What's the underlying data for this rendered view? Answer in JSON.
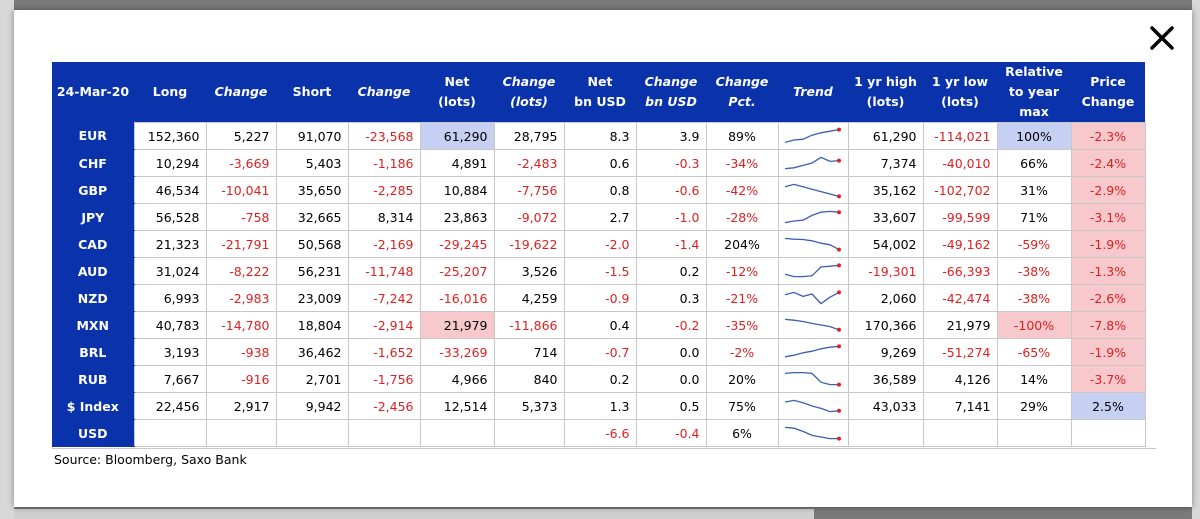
{
  "modal": {
    "close_icon": "close-icon",
    "source": "Source: Bloomberg, Saxo Bank"
  },
  "colors": {
    "header_bg": "#0a32aa",
    "negative": "#e02020",
    "highlight_blue": "#c5d0f2",
    "highlight_pink": "#f7c9cc",
    "spark_line": "#3a5fb5",
    "spark_dot": "#e02020"
  },
  "table": {
    "headers": [
      {
        "lines": [
          "24-Mar-20"
        ],
        "italic": false
      },
      {
        "lines": [
          "Long"
        ],
        "italic": false
      },
      {
        "lines": [
          "Change"
        ],
        "italic": true
      },
      {
        "lines": [
          "Short"
        ],
        "italic": false
      },
      {
        "lines": [
          "Change"
        ],
        "italic": true
      },
      {
        "lines": [
          "Net",
          "(lots)"
        ],
        "italic": false
      },
      {
        "lines": [
          "Change",
          "(lots)"
        ],
        "italic": true
      },
      {
        "lines": [
          "Net",
          "bn USD"
        ],
        "italic": false
      },
      {
        "lines": [
          "Change",
          "bn USD"
        ],
        "italic": true
      },
      {
        "lines": [
          "Change",
          "Pct."
        ],
        "italic": true
      },
      {
        "lines": [
          "Trend"
        ],
        "italic": true
      },
      {
        "lines": [
          "1 yr high",
          "(lots)"
        ],
        "italic": false
      },
      {
        "lines": [
          "1 yr low",
          "(lots)"
        ],
        "italic": false
      },
      {
        "lines": [
          "Relative",
          "to year",
          "max"
        ],
        "italic": false
      },
      {
        "lines": [
          "Price",
          "Change"
        ],
        "italic": false
      }
    ],
    "rows": [
      {
        "name": "EUR",
        "long": "152,360",
        "chg1": "5,227",
        "short": "91,070",
        "chg2": "-23,568",
        "net": "61,290",
        "chglots": "28,795",
        "netusd": "8.3",
        "chgusd": "3.9",
        "chgpct": "89%",
        "trend": [
          0.1,
          0.25,
          0.3,
          0.55,
          0.7,
          0.8,
          0.9
        ],
        "hi": "61,290",
        "lo": "-114,021",
        "rel": "100%",
        "price": "-2.3%",
        "hl": {
          "net": "blue",
          "rel": "blue",
          "price": "pink"
        }
      },
      {
        "name": "CHF",
        "long": "10,294",
        "chg1": "-3,669",
        "short": "5,403",
        "chg2": "-1,186",
        "net": "4,891",
        "chglots": "-2,483",
        "netusd": "0.6",
        "chgusd": "-0.3",
        "chgpct": "-34%",
        "trend": [
          0.15,
          0.2,
          0.35,
          0.5,
          0.85,
          0.6,
          0.65
        ],
        "hi": "7,374",
        "lo": "-40,010",
        "rel": "66%",
        "price": "-2.4%",
        "hl": {
          "price": "pink"
        }
      },
      {
        "name": "GBP",
        "long": "46,534",
        "chg1": "-10,041",
        "short": "35,650",
        "chg2": "-2,285",
        "net": "10,884",
        "chglots": "-7,756",
        "netusd": "0.8",
        "chgusd": "-0.6",
        "chgpct": "-42%",
        "trend": [
          0.7,
          0.85,
          0.7,
          0.55,
          0.4,
          0.25,
          0.1
        ],
        "hi": "35,162",
        "lo": "-102,702",
        "rel": "31%",
        "price": "-2.9%",
        "hl": {
          "price": "pink"
        }
      },
      {
        "name": "JPY",
        "long": "56,528",
        "chg1": "-758",
        "short": "32,665",
        "chg2": "8,314",
        "net": "23,863",
        "chglots": "-9,072",
        "netusd": "2.7",
        "chgusd": "-1.0",
        "chgpct": "-28%",
        "trend": [
          0.15,
          0.25,
          0.3,
          0.6,
          0.8,
          0.85,
          0.8
        ],
        "hi": "33,607",
        "lo": "-99,599",
        "rel": "71%",
        "price": "-3.1%",
        "hl": {
          "price": "pink"
        }
      },
      {
        "name": "CAD",
        "long": "21,323",
        "chg1": "-21,791",
        "short": "50,568",
        "chg2": "-2,169",
        "net": "-29,245",
        "chglots": "-19,622",
        "netusd": "-2.0",
        "chgusd": "-1.4",
        "chgpct": "204%",
        "trend": [
          0.85,
          0.8,
          0.78,
          0.7,
          0.55,
          0.45,
          0.15
        ],
        "hi": "54,002",
        "lo": "-49,162",
        "rel": "-59%",
        "price": "-1.9%",
        "hl": {
          "price": "pink"
        }
      },
      {
        "name": "AUD",
        "long": "31,024",
        "chg1": "-8,222",
        "short": "56,231",
        "chg2": "-11,748",
        "net": "-25,207",
        "chglots": "3,526",
        "netusd": "-1.5",
        "chgusd": "0.2",
        "chgpct": "-12%",
        "trend": [
          0.3,
          0.15,
          0.15,
          0.2,
          0.75,
          0.8,
          0.85
        ],
        "hi": "-19,301",
        "lo": "-66,393",
        "rel": "-38%",
        "price": "-1.3%",
        "hl": {
          "price": "pink"
        }
      },
      {
        "name": "NZD",
        "long": "6,993",
        "chg1": "-2,983",
        "short": "23,009",
        "chg2": "-7,242",
        "net": "-16,016",
        "chglots": "4,259",
        "netusd": "-0.9",
        "chgusd": "0.3",
        "chgpct": "-21%",
        "trend": [
          0.7,
          0.85,
          0.6,
          0.75,
          0.15,
          0.55,
          0.85
        ],
        "hi": "2,060",
        "lo": "-42,474",
        "rel": "-38%",
        "price": "-2.6%",
        "hl": {
          "price": "pink"
        }
      },
      {
        "name": "MXN",
        "long": "40,783",
        "chg1": "-14,780",
        "short": "18,804",
        "chg2": "-2,914",
        "net": "21,979",
        "chglots": "-11,866",
        "netusd": "0.4",
        "chgusd": "-0.2",
        "chgpct": "-35%",
        "trend": [
          0.85,
          0.8,
          0.72,
          0.6,
          0.5,
          0.4,
          0.2
        ],
        "hi": "170,366",
        "lo": "21,979",
        "rel": "-100%",
        "price": "-7.8%",
        "hl": {
          "net": "pink",
          "rel": "pink",
          "price": "pink"
        }
      },
      {
        "name": "BRL",
        "long": "3,193",
        "chg1": "-938",
        "short": "36,462",
        "chg2": "-1,652",
        "net": "-33,269",
        "chglots": "714",
        "netusd": "-0.7",
        "chgusd": "0.0",
        "chgpct": "-2%",
        "trend": [
          0.2,
          0.3,
          0.45,
          0.55,
          0.7,
          0.8,
          0.85
        ],
        "hi": "9,269",
        "lo": "-51,274",
        "rel": "-65%",
        "price": "-1.9%",
        "hl": {
          "price": "pink"
        }
      },
      {
        "name": "RUB",
        "long": "7,667",
        "chg1": "-916",
        "short": "2,701",
        "chg2": "-1,756",
        "net": "4,966",
        "chglots": "840",
        "netusd": "0.2",
        "chgusd": "0.0",
        "chgpct": "20%",
        "trend": [
          0.85,
          0.9,
          0.9,
          0.85,
          0.3,
          0.15,
          0.15
        ],
        "hi": "36,589",
        "lo": "4,126",
        "rel": "14%",
        "price": "-3.7%",
        "hl": {
          "price": "pink"
        }
      },
      {
        "name": "$ Index",
        "long": "22,456",
        "chg1": "2,917",
        "short": "9,942",
        "chg2": "-2,456",
        "net": "12,514",
        "chglots": "5,373",
        "netusd": "1.3",
        "chgusd": "0.5",
        "chgpct": "75%",
        "trend": [
          0.75,
          0.85,
          0.7,
          0.5,
          0.35,
          0.15,
          0.2
        ],
        "hi": "43,033",
        "lo": "7,141",
        "rel": "29%",
        "price": "2.5%",
        "hl": {
          "price": "blue"
        }
      },
      {
        "name": "USD",
        "long": "",
        "chg1": "",
        "short": "",
        "chg2": "",
        "net": "",
        "chglots": "",
        "netusd": "-6.6",
        "chgusd": "-0.4",
        "chgpct": "6%",
        "trend": [
          0.85,
          0.8,
          0.6,
          0.35,
          0.25,
          0.15,
          0.15
        ],
        "hi": "",
        "lo": "",
        "rel": "",
        "price": "",
        "hl": {}
      }
    ]
  }
}
